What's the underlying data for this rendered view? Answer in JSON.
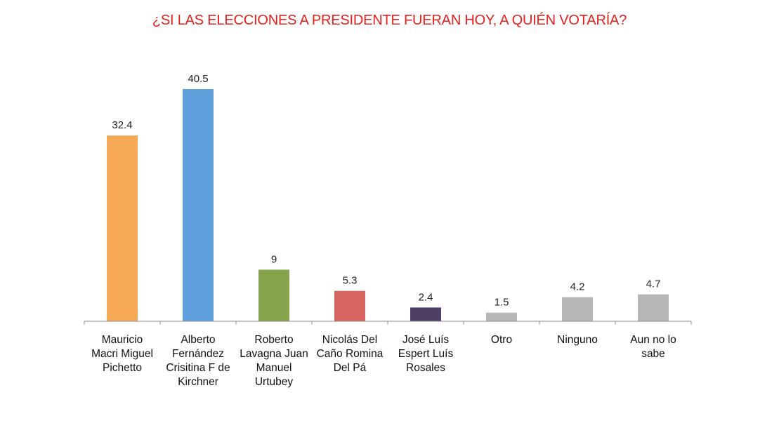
{
  "chart_data": {
    "type": "bar",
    "title": "¿SI LAS ELECCIONES A PRESIDENTE FUERAN HOY, A QUIÉN VOTARÍA?",
    "categories": [
      [
        "Mauricio",
        "Macri Miguel",
        "Pichetto"
      ],
      [
        "Alberto",
        "Fernández",
        "Crisitina F de",
        "Kirchner"
      ],
      [
        "Roberto",
        "Lavagna Juan",
        "Manuel",
        "Urtubey"
      ],
      [
        "Nicolás Del",
        "Caño Romina",
        "Del Pá"
      ],
      [
        "José Luís",
        "Espert Luís",
        "Rosales"
      ],
      [
        "Otro"
      ],
      [
        "Ninguno"
      ],
      [
        "Aun no lo",
        "sabe"
      ]
    ],
    "values": [
      32.4,
      40.5,
      9,
      5.3,
      2.4,
      1.5,
      4.2,
      4.7
    ],
    "value_labels": [
      "32.4",
      "40.5",
      "9",
      "5.3",
      "2.4",
      "1.5",
      "4.2",
      "4.7"
    ],
    "colors": [
      "#f5a855",
      "#5fa0dc",
      "#86a24a",
      "#d6645f",
      "#4e3f67",
      "#b7b7b7",
      "#b7b7b7",
      "#b7b7b7"
    ],
    "ylim": [
      0,
      40.5
    ],
    "grid": false,
    "legend": "none"
  }
}
